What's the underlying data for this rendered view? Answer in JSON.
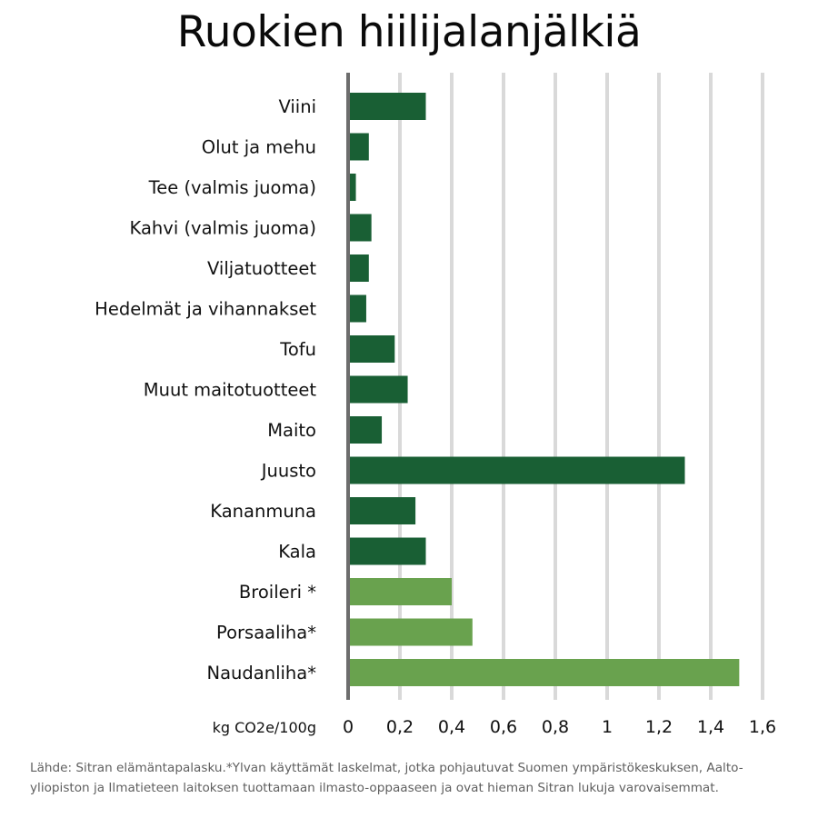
{
  "title": "Ruokien hiilijalanjälkiä",
  "chart_data": {
    "type": "bar",
    "orientation": "horizontal",
    "title": "Ruokien hiilijalanjälkiä",
    "xlabel": "kg CO2e/100g",
    "ylabel": "",
    "xlim": [
      0,
      1.6
    ],
    "x_ticks": [
      "0",
      "0,2",
      "0,4",
      "0,6",
      "0,8",
      "1",
      "1,2",
      "1,4",
      "1,6"
    ],
    "grid": "vertical",
    "categories": [
      "Viini",
      "Olut ja mehu",
      "Tee (valmis juoma)",
      "Kahvi (valmis juoma)",
      "Viljatuotteet",
      "Hedelmät ja vihannakset",
      "Tofu",
      "Muut maitotuotteet",
      "Maito",
      "Juusto",
      "Kananmuna",
      "Kala",
      "Broileri *",
      "Porsaaliha*",
      "Naudanliha*"
    ],
    "values": [
      0.3,
      0.08,
      0.03,
      0.09,
      0.08,
      0.07,
      0.18,
      0.23,
      0.13,
      1.3,
      0.26,
      0.3,
      0.4,
      0.48,
      1.51
    ],
    "highlighted": [
      false,
      false,
      false,
      false,
      false,
      false,
      false,
      false,
      false,
      false,
      false,
      false,
      true,
      true,
      true
    ],
    "colors": {
      "bar": "#195f34",
      "bar_highlight": "#69a24e",
      "grid": "#d9d9d9",
      "axis": "#6d6d6d"
    }
  },
  "footnote": "Lähde: Sitran elämäntapalasku.*Ylvan käyttämät laskelmat, jotka pohjautuvat Suomen ympäristökeskuksen, Aalto-yliopiston ja Ilmatieteen laitoksen tuottamaan ilmasto-oppaaseen ja ovat hieman Sitran lukuja varovaisemmat."
}
